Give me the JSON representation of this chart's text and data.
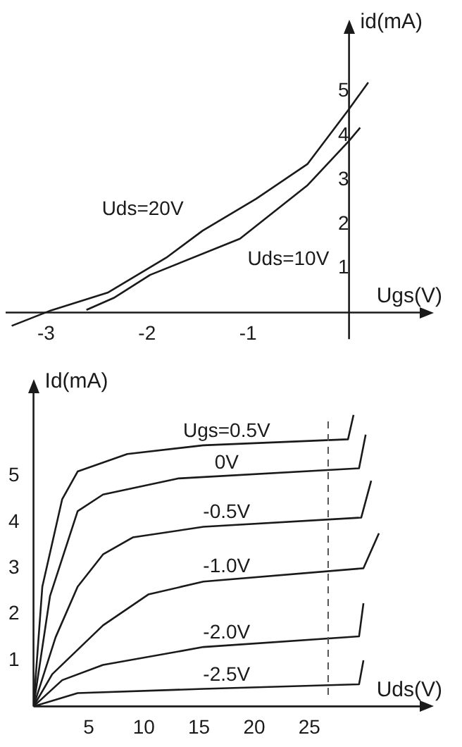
{
  "chart_data": [
    {
      "type": "line",
      "xlabel": "Ugs(V)",
      "ylabel": "id(mA)",
      "xlim": [
        -3.4,
        0.7
      ],
      "ylim": [
        -0.6,
        6.3
      ],
      "xticks": [
        -3,
        -2,
        -1
      ],
      "yticks": [
        1,
        2,
        3,
        4,
        5
      ],
      "grid": false,
      "legend": false,
      "series": [
        {
          "name": "Uds=20V",
          "color": "#1a1a1a",
          "x": [
            -3.34,
            -2.95,
            -2.39,
            -1.81,
            -1.45,
            -0.92,
            -0.41,
            0.0,
            0.19
          ],
          "values": [
            -0.3,
            0.05,
            0.45,
            1.24,
            1.85,
            2.57,
            3.36,
            4.6,
            5.2
          ]
        },
        {
          "name": "Uds=10V",
          "color": "#1a1a1a",
          "x": [
            -2.6,
            -2.33,
            -1.97,
            -1.08,
            -0.41,
            0.0,
            0.11
          ],
          "values": [
            0.06,
            0.33,
            0.85,
            1.67,
            2.88,
            3.88,
            4.18
          ]
        }
      ]
    },
    {
      "type": "line",
      "xlabel": "Uds(V)",
      "ylabel": "Id(mA)",
      "xlim": [
        0,
        35
      ],
      "ylim": [
        0,
        6.8
      ],
      "xticks": [
        5,
        10,
        15,
        20,
        25
      ],
      "yticks": [
        1,
        2,
        3,
        4,
        5
      ],
      "grid": false,
      "legend": false,
      "ref_lines": [
        {
          "axis": "x",
          "value": 26.7,
          "line_style": "dashed",
          "color": "#555555"
        }
      ],
      "series": [
        {
          "name": "Ugs=0.5V",
          "color": "#1a1a1a",
          "x": [
            0,
            0.8,
            2.6,
            4,
            8.5,
            15.4,
            28.5,
            29
          ],
          "values": [
            0,
            2.6,
            4.5,
            5.1,
            5.48,
            5.67,
            5.8,
            6.33
          ]
        },
        {
          "name": "0V",
          "color": "#1a1a1a",
          "x": [
            0,
            1.5,
            4,
            6.3,
            13.1,
            29.5,
            30.1
          ],
          "values": [
            0,
            2.4,
            4.24,
            4.6,
            4.95,
            5.17,
            5.9
          ]
        },
        {
          "name": "-0.5V",
          "color": "#1a1a1a",
          "x": [
            0,
            2,
            4,
            6.3,
            9,
            15.4,
            29.7,
            30.6
          ],
          "values": [
            0,
            1.5,
            2.6,
            3.3,
            3.67,
            3.9,
            4.1,
            4.9
          ]
        },
        {
          "name": "-1.0V",
          "color": "#1a1a1a",
          "x": [
            0,
            1.7,
            6.3,
            10.4,
            15.4,
            29.9,
            31.3
          ],
          "values": [
            0,
            0.7,
            1.76,
            2.43,
            2.71,
            3.0,
            3.76
          ]
        },
        {
          "name": "-2.0V",
          "color": "#1a1a1a",
          "x": [
            0,
            2.6,
            6.3,
            15.4,
            29.5,
            29.9
          ],
          "values": [
            0,
            0.57,
            0.9,
            1.29,
            1.52,
            2.24
          ]
        },
        {
          "name": "-2.5V",
          "color": "#1a1a1a",
          "x": [
            0,
            4,
            15.4,
            29.5,
            29.9
          ],
          "values": [
            0,
            0.29,
            0.38,
            0.48,
            1.0
          ]
        }
      ]
    }
  ]
}
